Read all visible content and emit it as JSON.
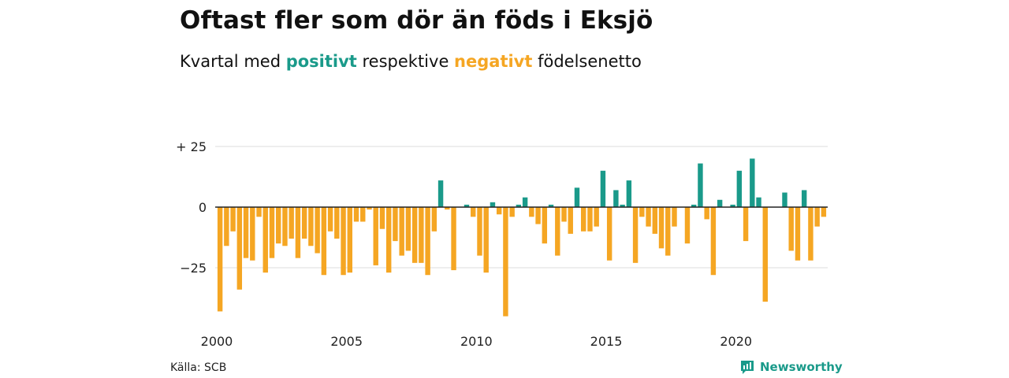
{
  "title": "Oftast fler som dör än föds i Eksjö",
  "subtitle": {
    "prefix": "Kvartal med ",
    "positive_word": "positivt",
    "middle": " respektive ",
    "negative_word": "negativt",
    "suffix": " födelsenetto"
  },
  "source": "Källa: SCB",
  "brand": "Newsworthy",
  "colors": {
    "positive": "#1a9a8a",
    "negative": "#f5a623",
    "grid": "#dddddd",
    "zero_line": "#222222"
  },
  "chart_data": {
    "type": "bar",
    "y_tick_labels": [
      "+ 25",
      "0",
      "−25"
    ],
    "y_ticks": [
      25,
      0,
      -25
    ],
    "x_tick_labels": [
      "2000",
      "2005",
      "2010",
      "2015",
      "2020"
    ],
    "x_ticks": [
      2000,
      2005,
      2010,
      2015,
      2020
    ],
    "ylim": [
      -45,
      25
    ],
    "xlim": [
      2000,
      2023.5
    ],
    "x_start": 2000,
    "quarters_per_year": 4,
    "values": [
      -43,
      -16,
      -10,
      -34,
      -21,
      -22,
      -4,
      -27,
      -21,
      -15,
      -16,
      -13,
      -21,
      -13,
      -16,
      -19,
      -28,
      -10,
      -13,
      -28,
      -27,
      -6,
      -6,
      -1,
      -24,
      -9,
      -27,
      -14,
      -20,
      -18,
      -23,
      -23,
      -28,
      -10,
      11,
      -1,
      -26,
      0,
      1,
      -4,
      -20,
      -27,
      2,
      -3,
      -45,
      -4,
      1,
      4,
      -4,
      -7,
      -15,
      1,
      -20,
      -6,
      -11,
      8,
      -10,
      -10,
      -8,
      15,
      -22,
      7,
      1,
      11,
      -23,
      -4,
      -8,
      -11,
      -17,
      -20,
      -8,
      0,
      -15,
      1,
      18,
      -5,
      -28,
      3,
      0,
      1,
      15,
      -14,
      20,
      4,
      -39,
      0,
      0,
      6,
      -18,
      -22,
      7,
      -22,
      -8,
      -4
    ]
  }
}
